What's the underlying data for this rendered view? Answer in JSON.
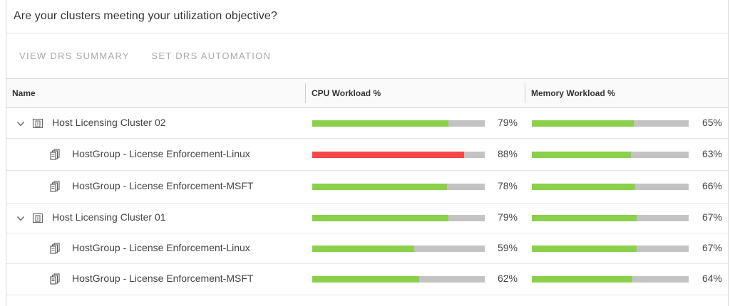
{
  "panel": {
    "title": "Are your clusters meeting your utilization objective?",
    "actions": [
      {
        "label": "VIEW DRS SUMMARY"
      },
      {
        "label": "SET DRS AUTOMATION"
      }
    ]
  },
  "table": {
    "columns": {
      "name": "Name",
      "cpu": "CPU Workload %",
      "memory": "Memory Workload %"
    },
    "rows": [
      {
        "name": "Host Licensing Cluster 02",
        "kind": "cluster",
        "icon": "cluster-icon",
        "expanded": true,
        "cpu": 79,
        "cpu_text": "79%",
        "cpu_status": "normal",
        "mem": 65,
        "mem_text": "65%"
      },
      {
        "name": "HostGroup - License Enforcement-Linux",
        "kind": "hostgroup",
        "icon": "host-group-icon",
        "cpu": 88,
        "cpu_text": "88%",
        "cpu_status": "critical",
        "mem": 63,
        "mem_text": "63%"
      },
      {
        "name": "HostGroup - License Enforcement-MSFT",
        "kind": "hostgroup",
        "icon": "host-group-icon",
        "cpu": 78,
        "cpu_text": "78%",
        "cpu_status": "normal",
        "mem": 66,
        "mem_text": "66%"
      },
      {
        "name": "Host Licensing Cluster 01",
        "kind": "cluster",
        "icon": "cluster-icon",
        "expanded": true,
        "cpu": 79,
        "cpu_text": "79%",
        "cpu_status": "normal",
        "mem": 67,
        "mem_text": "67%"
      },
      {
        "name": "HostGroup - License Enforcement-Linux",
        "kind": "hostgroup",
        "icon": "host-group-icon",
        "cpu": 59,
        "cpu_text": "59%",
        "cpu_status": "normal",
        "mem": 67,
        "mem_text": "67%"
      },
      {
        "name": "HostGroup - License Enforcement-MSFT",
        "kind": "hostgroup",
        "icon": "host-group-icon",
        "cpu": 62,
        "cpu_text": "62%",
        "cpu_status": "normal",
        "mem": 64,
        "mem_text": "64%"
      }
    ]
  },
  "colors": {
    "bar_ok": "#8bd04b",
    "bar_critical": "#f44848",
    "bar_track": "#c3c3c3"
  }
}
